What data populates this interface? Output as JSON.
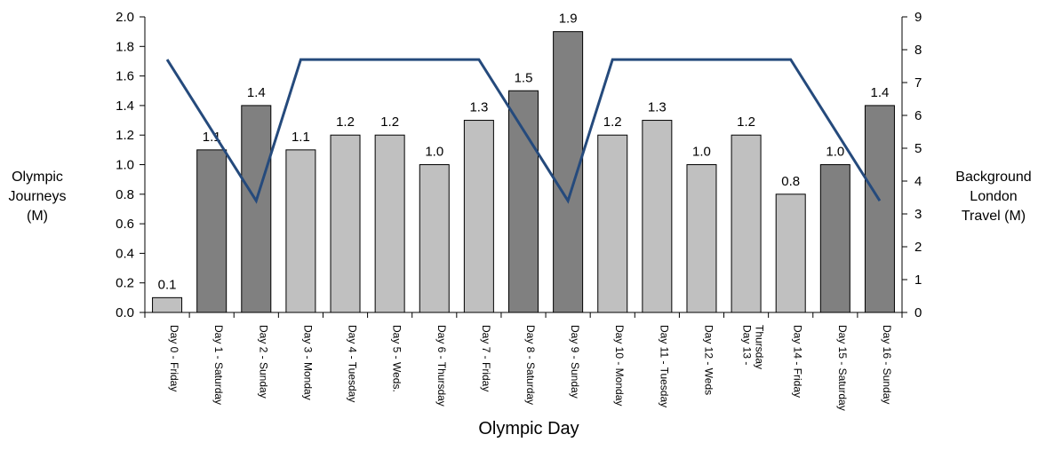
{
  "chart_data": {
    "type": "bar",
    "title": "",
    "xlabel": "Olympic Day",
    "ylabel": "Olympic\nJourneys\n(M)",
    "y2label": "Background\nLondon\nTravel (M)",
    "ylim": [
      0,
      2.0
    ],
    "y2lim": [
      0,
      9
    ],
    "yticks": [
      "0.0",
      "0.2",
      "0.4",
      "0.6",
      "0.8",
      "1.0",
      "1.2",
      "1.4",
      "1.6",
      "1.8",
      "2.0"
    ],
    "y2ticks": [
      "0",
      "1",
      "2",
      "3",
      "4",
      "5",
      "6",
      "7",
      "8",
      "9"
    ],
    "categories": [
      "Day 0 - Friday",
      "Day 1 - Saturday",
      "Day 2 - Sunday",
      "Day 3 - Monday",
      "Day 4 - Tuesday",
      "Day 5 - Weds.",
      "Day 6 - Thursday",
      "Day 7 - Friday",
      "Day 8 - Saturday",
      "Day 9 - Sunday",
      "Day 10 - Monday",
      "Day 11 - Tuesday",
      "Day 12 - Weds",
      "Day 13 -\nThursday",
      "Day 14 - Friday",
      "Day 15 - Saturday",
      "Day 16 - Sunday"
    ],
    "series": [
      {
        "kind": "bar",
        "axis": "left",
        "values": [
          0.1,
          1.1,
          1.4,
          1.1,
          1.2,
          1.2,
          1.0,
          1.3,
          1.5,
          1.9,
          1.2,
          1.3,
          1.0,
          1.2,
          0.8,
          1.0,
          1.4
        ],
        "data_labels": [
          "0.1",
          "1.1",
          "1.4",
          "1.1",
          "1.2",
          "1.2",
          "1.0",
          "1.3",
          "1.5",
          "1.9",
          "1.2",
          "1.3",
          "1.0",
          "1.2",
          "0.8",
          "1.0",
          "1.4"
        ],
        "bar_shades": [
          "light",
          "dark",
          "dark",
          "light",
          "light",
          "light",
          "light",
          "light",
          "dark",
          "dark",
          "light",
          "light",
          "light",
          "light",
          "light",
          "dark",
          "dark"
        ]
      },
      {
        "kind": "line",
        "axis": "right",
        "values": [
          7.7,
          null,
          3.4,
          7.7,
          7.7,
          7.7,
          7.7,
          7.7,
          null,
          3.4,
          7.7,
          7.7,
          7.7,
          7.7,
          7.7,
          null,
          3.4
        ]
      }
    ],
    "colors": {
      "bar_light": "#c0c0c0",
      "bar_dark": "#808080",
      "line": "#254a7c",
      "axis": "#000000"
    },
    "grid": false,
    "legend": "none"
  }
}
